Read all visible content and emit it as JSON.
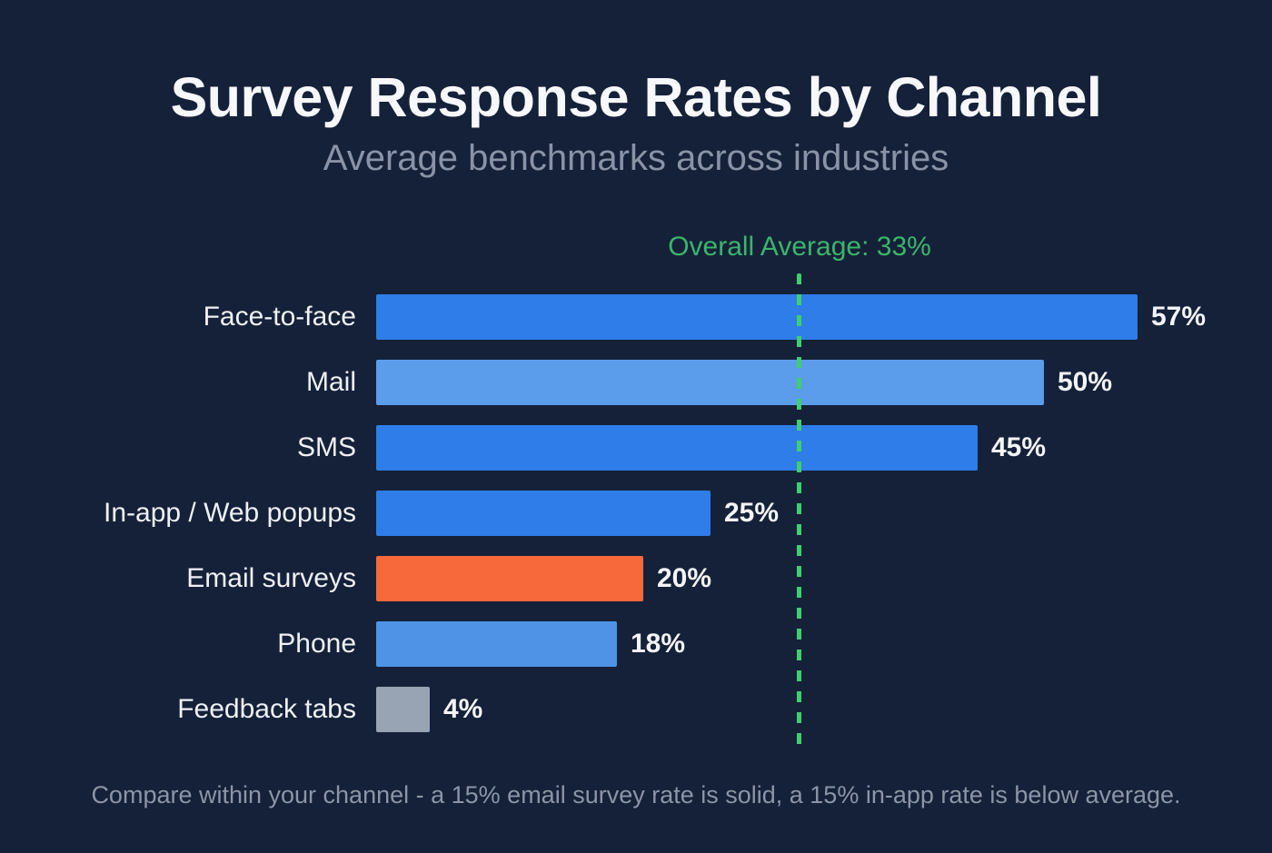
{
  "header": {
    "title": "Survey Response Rates by Channel",
    "subtitle": "Average benchmarks across industries"
  },
  "annotation": {
    "average_label": "Overall Average: 33%",
    "average_value": 33,
    "line_color": "#3ecf6e",
    "text_color": "#3bb56b"
  },
  "footer": {
    "note": "Compare within your channel - a 15% email survey rate is solid, a 15% in-app rate is below average."
  },
  "colors": {
    "background": "#152139",
    "title_text": "#f6f8fb",
    "subtitle_text": "#8a93a6",
    "label_text": "#eef1f6",
    "value_text": "#f3f5f9",
    "footer_text": "#8c95a6",
    "bar_blue": "#2e7de9",
    "bar_light_blue": "#5b9ceb",
    "bar_medium_blue": "#4f93e6",
    "bar_orange": "#f7693a",
    "bar_gray": "#98a3b3"
  },
  "chart_data": {
    "type": "bar",
    "orientation": "horizontal",
    "title": "Survey Response Rates by Channel",
    "subtitle": "Average benchmarks across industries",
    "xlabel": "",
    "ylabel": "",
    "xlim": [
      0,
      60
    ],
    "grid": false,
    "legend": false,
    "categories": [
      "Face-to-face",
      "Mail",
      "SMS",
      "In-app / Web popups",
      "Email surveys",
      "Phone",
      "Feedback tabs"
    ],
    "values": [
      57,
      50,
      45,
      25,
      20,
      18,
      4
    ],
    "value_labels": [
      "57%",
      "50%",
      "45%",
      "25%",
      "20%",
      "18%",
      "4%"
    ],
    "bar_colors": [
      "#2e7de9",
      "#5b9ceb",
      "#2e7de9",
      "#2e7de9",
      "#f7693a",
      "#4f93e6",
      "#98a3b3"
    ],
    "reference_line": {
      "label": "Overall Average: 33%",
      "value": 33,
      "style": "dashed",
      "color": "#3ecf6e"
    }
  }
}
